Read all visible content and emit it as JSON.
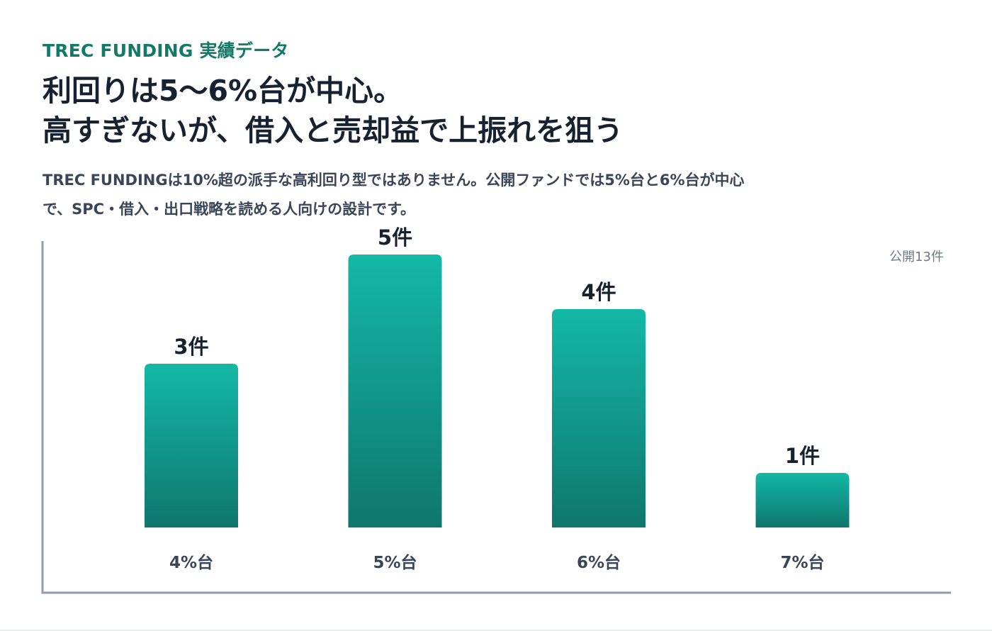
{
  "header": {
    "eyebrow": "TREC FUNDING 実績データ",
    "headline_line1": "利回りは5〜6%台が中心。",
    "headline_line2": "高すぎないが、借入と売却益で上振れを狙う",
    "lead_line1": "TREC FUNDINGは10%超の派手な高利回り型ではありません。公開ファンドでは5%台と6%台が中心",
    "lead_line2": "で、SPC・借入・出口戦略を読める人向けの設計です。"
  },
  "colors": {
    "accent": "#137a69",
    "bar_top": "#14b8a6",
    "bar_bottom": "#0f766e",
    "axis": "#8e9cad"
  },
  "chart_data": {
    "type": "bar",
    "title": "",
    "xlabel": "",
    "ylabel": "",
    "categories": [
      "4%台",
      "5%台",
      "6%台",
      "7%台"
    ],
    "values": [
      3,
      5,
      4,
      1
    ],
    "value_labels": [
      "3件",
      "5件",
      "4件",
      "1件"
    ],
    "ylim": [
      0,
      5
    ],
    "grid": false,
    "legend": "none",
    "annotation": "公開13件"
  }
}
